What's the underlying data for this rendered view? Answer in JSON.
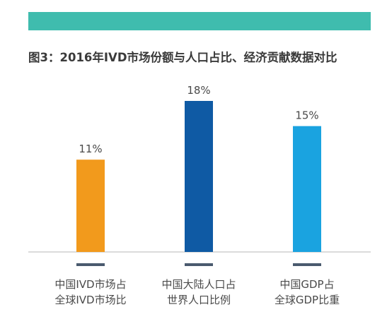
{
  "header": {
    "title": "图3：2016年IVD市场份额与人口占比、经济贡献数据对比"
  },
  "colors": {
    "band": "#3fbcae",
    "baseline": "#cfcfcf",
    "tickmark": "#4a5a6e",
    "label_text": "#4a4a4a"
  },
  "chart_data": {
    "type": "bar",
    "title": "图3：2016年IVD市场份额与人口占比、经济贡献数据对比",
    "xlabel": "",
    "ylabel": "",
    "ylim": [
      0,
      18
    ],
    "grid": false,
    "categories": [
      [
        "中国IVD市场占",
        "全球IVD市场比"
      ],
      [
        "中国大陆人口占",
        "世界人口比例"
      ],
      [
        "中国GDP占",
        "全球GDP比重"
      ]
    ],
    "values": [
      11,
      18,
      15
    ],
    "data_labels": [
      "11%",
      "18%",
      "15%"
    ],
    "colors": [
      "#f29a1c",
      "#0f5aa4",
      "#1aa3e0"
    ]
  }
}
